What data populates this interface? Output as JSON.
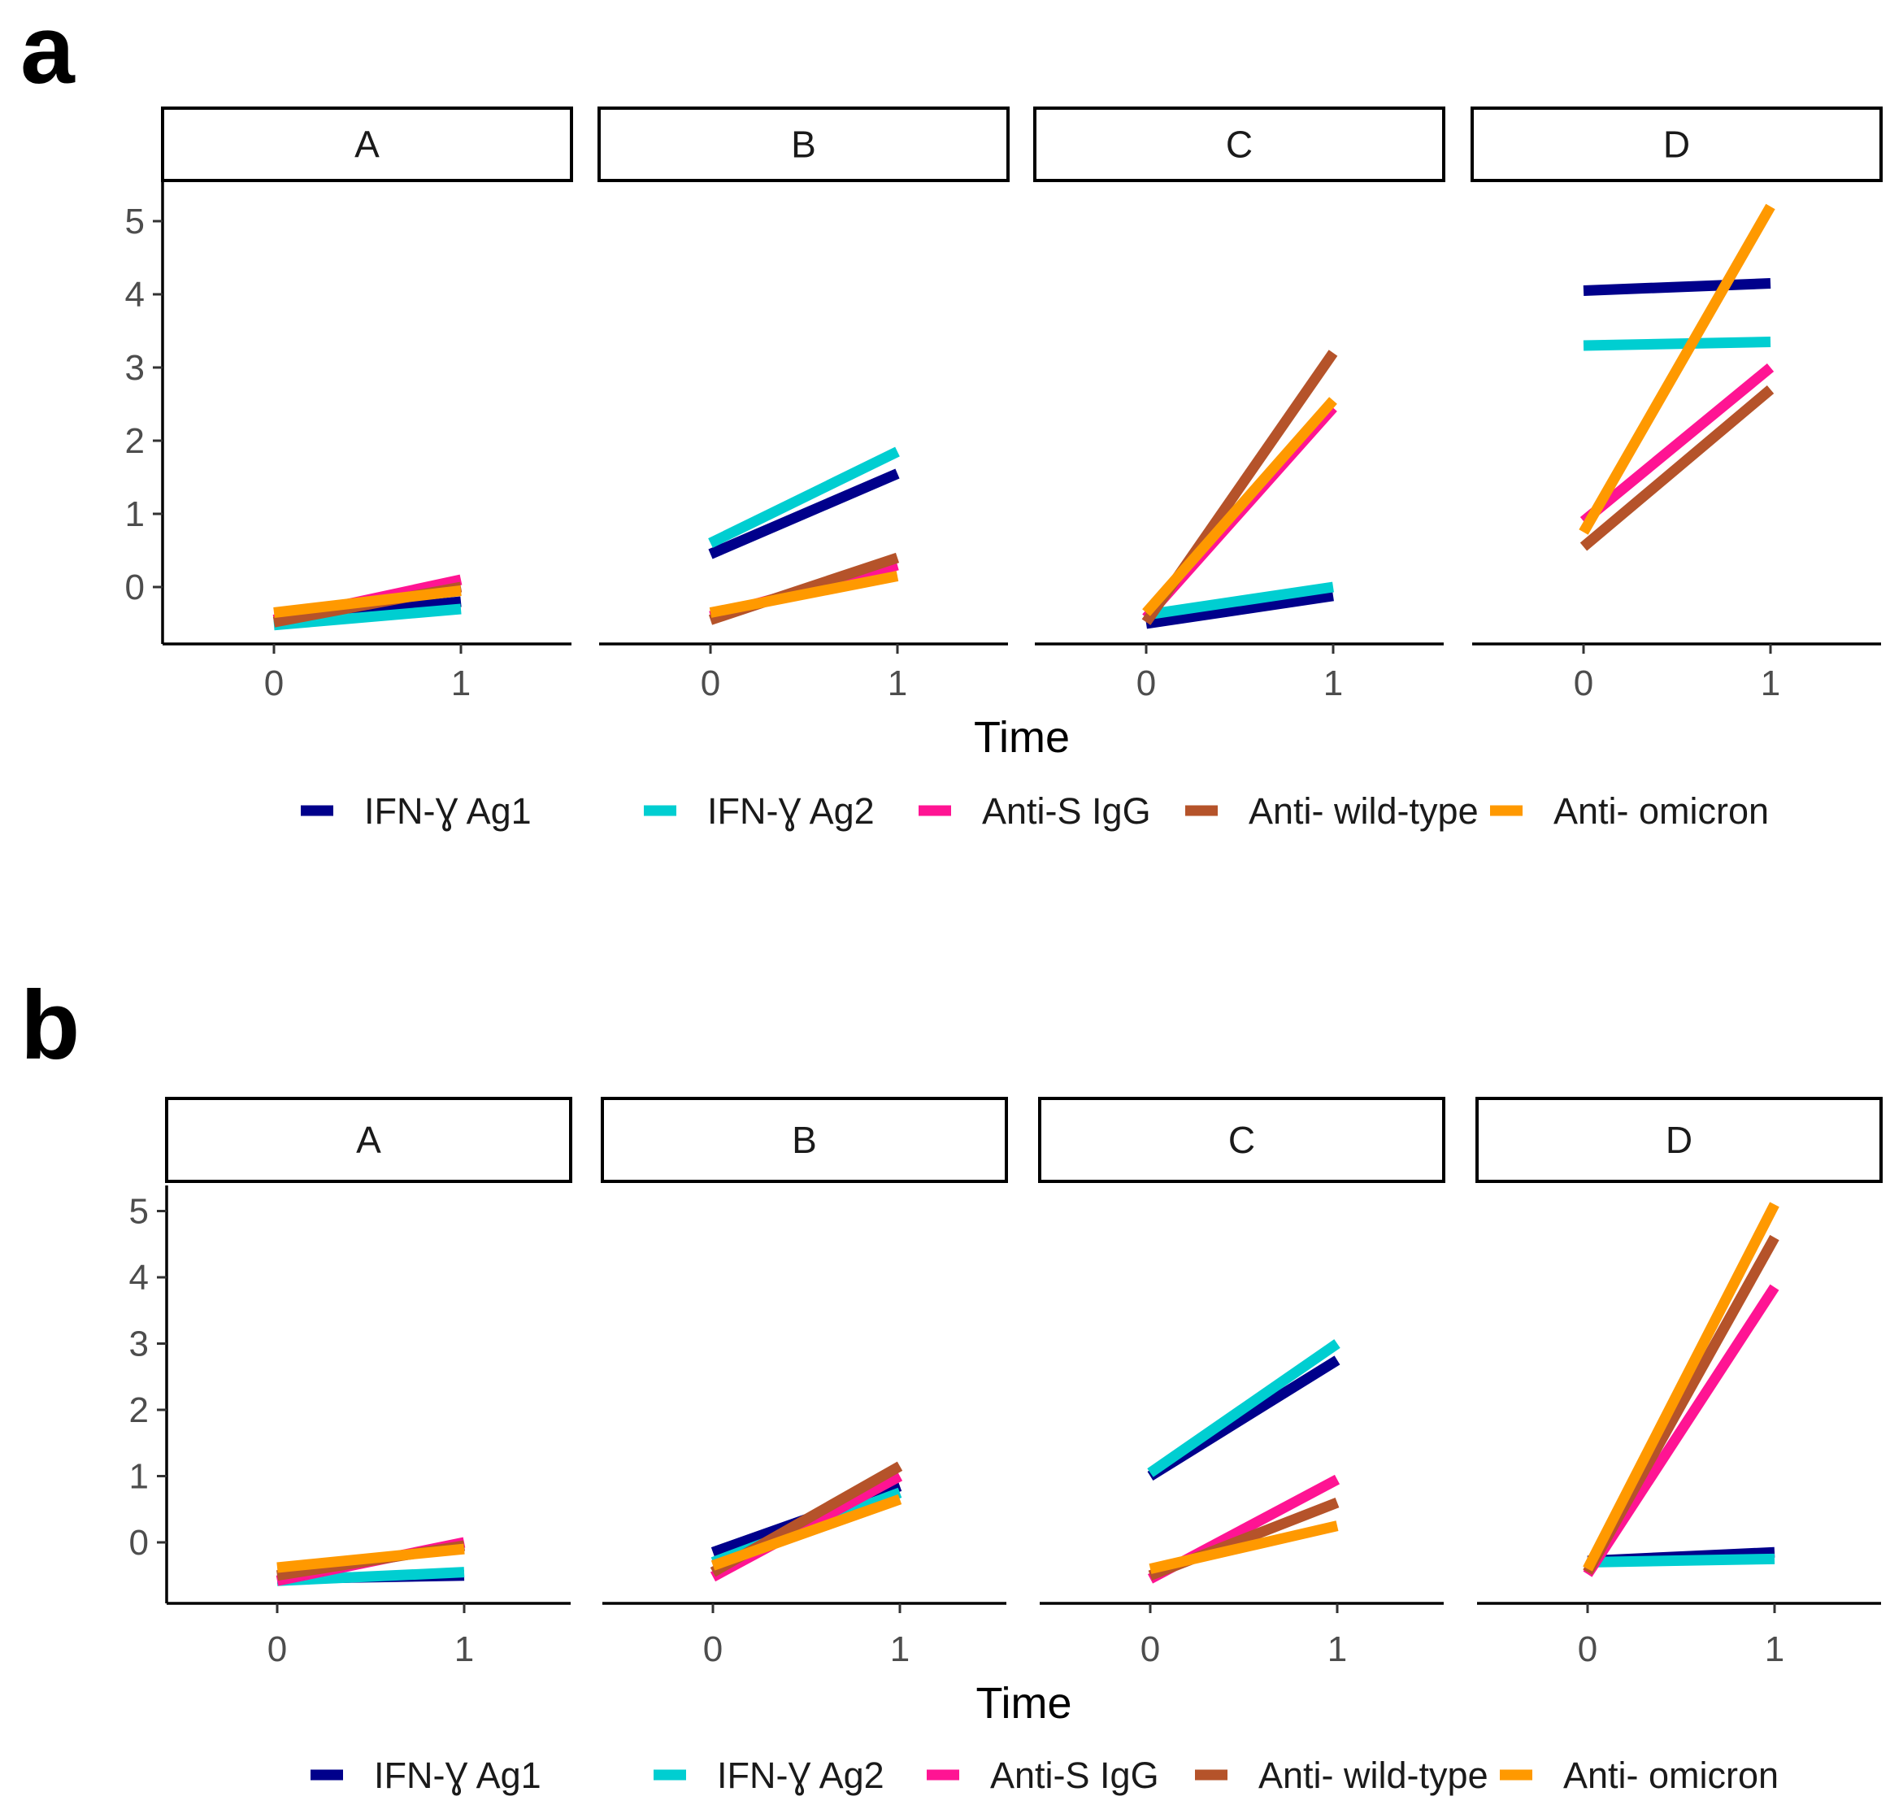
{
  "figure_labels": [
    "a",
    "b"
  ],
  "chart_data": [
    {
      "type": "line",
      "panel_label": "a",
      "facets": [
        "A",
        "B",
        "C",
        "D"
      ],
      "x": [
        0,
        1
      ],
      "x_ticks": [
        "0",
        "1"
      ],
      "xlabel": "Time",
      "ylabel": "",
      "ylim": [
        -0.8,
        5.5
      ],
      "y_ticks": [
        0,
        1,
        2,
        3,
        4,
        5
      ],
      "legend_position": "bottom",
      "series": [
        {
          "name": "IFN-Ɣ Ag1",
          "color": "#00008B",
          "facets": {
            "A": [
              -0.45,
              -0.2
            ],
            "B": [
              0.45,
              1.55
            ],
            "C": [
              -0.5,
              -0.12
            ],
            "D": [
              4.05,
              4.15
            ]
          }
        },
        {
          "name": "IFN-Ɣ Ag2",
          "color": "#00CED1",
          "facets": {
            "A": [
              -0.52,
              -0.3
            ],
            "B": [
              0.6,
              1.85
            ],
            "C": [
              -0.38,
              0.0
            ],
            "D": [
              3.3,
              3.35
            ]
          }
        },
        {
          "name": "Anti-S IgG",
          "color": "#FF1493",
          "facets": {
            "A": [
              -0.45,
              0.1
            ],
            "B": [
              -0.4,
              0.3
            ],
            "C": [
              -0.42,
              2.45
            ],
            "D": [
              0.9,
              3.0
            ]
          }
        },
        {
          "name": "Anti- wild-type",
          "color": "#B5532A",
          "facets": {
            "A": [
              -0.48,
              0.0
            ],
            "B": [
              -0.45,
              0.4
            ],
            "C": [
              -0.48,
              3.2
            ],
            "D": [
              0.55,
              2.7
            ]
          }
        },
        {
          "name": "Anti- omicron",
          "color": "#FF9900",
          "facets": {
            "A": [
              -0.35,
              -0.05
            ],
            "B": [
              -0.35,
              0.15
            ],
            "C": [
              -0.35,
              2.55
            ],
            "D": [
              0.75,
              5.2
            ]
          }
        }
      ]
    },
    {
      "type": "line",
      "panel_label": "b",
      "facets": [
        "A",
        "B",
        "C",
        "D"
      ],
      "x": [
        0,
        1
      ],
      "x_ticks": [
        "0",
        "1"
      ],
      "xlabel": "Time",
      "ylabel": "",
      "ylim": [
        -0.8,
        5.4
      ],
      "y_ticks": [
        0,
        1,
        2,
        3,
        4,
        5
      ],
      "legend_position": "bottom",
      "series": [
        {
          "name": "IFN-Ɣ Ag1",
          "color": "#00008B",
          "facets": {
            "A": [
              -0.55,
              -0.5
            ],
            "B": [
              -0.15,
              0.85
            ],
            "C": [
              1.0,
              2.75
            ],
            "D": [
              -0.28,
              -0.15
            ]
          }
        },
        {
          "name": "IFN-Ɣ Ag2",
          "color": "#00CED1",
          "facets": {
            "A": [
              -0.58,
              -0.45
            ],
            "B": [
              -0.3,
              0.75
            ],
            "C": [
              1.05,
              3.0
            ],
            "D": [
              -0.3,
              -0.25
            ]
          }
        },
        {
          "name": "Anti-S IgG",
          "color": "#FF1493",
          "facets": {
            "A": [
              -0.58,
              0.0
            ],
            "B": [
              -0.52,
              1.0
            ],
            "C": [
              -0.55,
              0.95
            ],
            "D": [
              -0.48,
              3.85
            ]
          }
        },
        {
          "name": "Anti- wild-type",
          "color": "#B5532A",
          "facets": {
            "A": [
              -0.5,
              -0.05
            ],
            "B": [
              -0.45,
              1.15
            ],
            "C": [
              -0.5,
              0.6
            ],
            "D": [
              -0.45,
              4.6
            ]
          }
        },
        {
          "name": "Anti- omicron",
          "color": "#FF9900",
          "facets": {
            "A": [
              -0.38,
              -0.1
            ],
            "B": [
              -0.35,
              0.65
            ],
            "C": [
              -0.4,
              0.25
            ],
            "D": [
              -0.4,
              5.1
            ]
          }
        }
      ]
    }
  ]
}
